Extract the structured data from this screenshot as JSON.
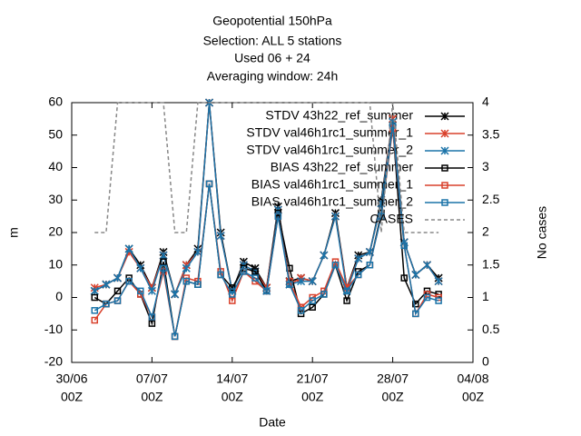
{
  "chart_data": {
    "type": "line",
    "title": [
      "Geopotential 150hPa",
      "Selection: ALL      5 stations",
      "Used  06  + 24",
      "Averaging window: 24h"
    ],
    "xlabel": "Date",
    "ylabel": "m",
    "y2label": "No cases",
    "xlim": [
      "30/06 00Z",
      "04/08 00Z"
    ],
    "xticks": [
      {
        "value": "30/06 00Z",
        "label": [
          "30/06",
          "00Z"
        ]
      },
      {
        "value": "07/07 00Z",
        "label": [
          "07/07",
          "00Z"
        ]
      },
      {
        "value": "14/07 00Z",
        "label": [
          "14/07",
          "00Z"
        ]
      },
      {
        "value": "21/07 00Z",
        "label": [
          "21/07",
          "00Z"
        ]
      },
      {
        "value": "28/07 00Z",
        "label": [
          "28/07",
          "00Z"
        ]
      },
      {
        "value": "04/08 00Z",
        "label": [
          "04/08",
          "00Z"
        ]
      }
    ],
    "ylim": [
      -20,
      60
    ],
    "yticks": [
      -20,
      -10,
      0,
      10,
      20,
      30,
      40,
      50,
      60
    ],
    "y2lim": [
      0,
      4
    ],
    "y2ticks": [
      0,
      0.5,
      1,
      1.5,
      2,
      2.5,
      3,
      3.5,
      4
    ],
    "legend": "top-right",
    "x": [
      "02/07 00Z",
      "03/07 00Z",
      "04/07 00Z",
      "05/07 00Z",
      "06/07 00Z",
      "07/07 00Z",
      "08/07 00Z",
      "09/07 00Z",
      "10/07 00Z",
      "11/07 00Z",
      "12/07 00Z",
      "13/07 00Z",
      "14/07 00Z",
      "15/07 00Z",
      "16/07 00Z",
      "17/07 00Z",
      "18/07 00Z",
      "19/07 00Z",
      "20/07 00Z",
      "21/07 00Z",
      "22/07 00Z",
      "23/07 00Z",
      "24/07 00Z",
      "25/07 00Z",
      "26/07 00Z",
      "27/07 00Z",
      "28/07 00Z",
      "29/07 00Z",
      "30/07 00Z",
      "31/07 00Z",
      "01/08 00Z"
    ],
    "series": [
      {
        "name": "STDV 43h22_ref_summer",
        "color": "#000000",
        "marker": "star",
        "values": [
          2,
          4,
          6,
          15,
          10,
          3,
          14,
          1,
          10,
          15,
          60,
          20,
          2,
          11,
          9,
          3,
          28,
          5,
          6,
          5,
          13,
          26,
          3,
          13,
          14,
          30,
          55,
          17,
          7,
          10,
          6
        ]
      },
      {
        "name": "STDV val46h1rc1_summer_1",
        "color": "#d9402b",
        "marker": "star",
        "values": [
          3,
          4,
          6,
          14,
          9,
          3,
          13,
          1,
          10,
          14,
          60,
          19,
          2,
          10,
          8,
          3,
          27,
          4,
          6,
          5,
          13,
          25,
          3,
          12,
          14,
          29,
          55,
          17,
          7,
          10,
          5
        ]
      },
      {
        "name": "STDV val46h1rc1_summer_2",
        "color": "#1a73a8",
        "marker": "star",
        "values": [
          2,
          4,
          6,
          15,
          9,
          2,
          13,
          1,
          9,
          14,
          60,
          19,
          2,
          10,
          8,
          2,
          27,
          4,
          5,
          5,
          13,
          25,
          2,
          12,
          14,
          29,
          54,
          17,
          7,
          10,
          5
        ]
      },
      {
        "name": "BIAS 43h22_ref_summer",
        "color": "#000000",
        "marker": "square",
        "values": [
          0,
          -2,
          2,
          6,
          1,
          -8,
          11,
          -12,
          5,
          4,
          35,
          7,
          3,
          9,
          8,
          2,
          26,
          9,
          -5,
          -3,
          1,
          10,
          -1,
          8,
          10,
          26,
          53,
          6,
          -2,
          2,
          1
        ]
      },
      {
        "name": "BIAS val46h1rc1_summer_1",
        "color": "#d9402b",
        "marker": "square",
        "values": [
          -7,
          -2,
          -1,
          5,
          1,
          -6,
          8,
          -12,
          6,
          5,
          35,
          8,
          -1,
          8,
          5,
          2,
          25,
          5,
          -3,
          0,
          2,
          11,
          3,
          7,
          10,
          25,
          52,
          16,
          -5,
          1,
          0
        ]
      },
      {
        "name": "BIAS val46h1rc1_summer_2",
        "color": "#1a73a8",
        "marker": "square",
        "values": [
          -4,
          -2,
          -1,
          5,
          2,
          -6,
          9,
          -12,
          5,
          4,
          35,
          7,
          1,
          8,
          6,
          2,
          25,
          4,
          -4,
          -1,
          1,
          10,
          2,
          7,
          10,
          25,
          53,
          16,
          -5,
          0,
          -1
        ]
      },
      {
        "name": "CASES",
        "color": "#888888",
        "marker": "none",
        "dashed": true,
        "axis": "y2",
        "values": [
          2,
          2,
          4,
          4,
          4,
          4,
          4,
          2,
          2,
          4,
          4,
          4,
          4,
          4,
          4,
          4,
          4,
          4,
          4,
          4,
          4,
          4,
          4,
          4,
          4,
          2,
          4,
          2,
          2,
          2,
          2
        ]
      }
    ]
  }
}
